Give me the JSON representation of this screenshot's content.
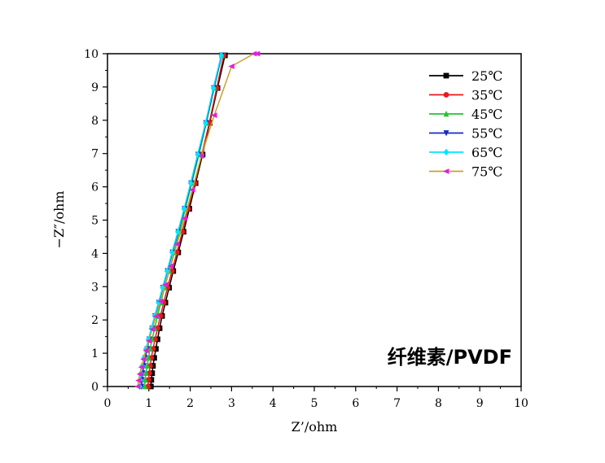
{
  "chart_data": {
    "type": "line",
    "xlabel": "Z’/ohm",
    "ylabel": "−Z″/ohm",
    "xlim": [
      0,
      10
    ],
    "ylim": [
      0,
      10
    ],
    "xticks": [
      0,
      1,
      2,
      3,
      4,
      5,
      6,
      7,
      8,
      9,
      10
    ],
    "yticks": [
      0,
      1,
      2,
      3,
      4,
      5,
      6,
      7,
      8,
      9,
      10
    ],
    "grid": false,
    "legend_position": "top-right",
    "annotation": "纤维素/PVDF",
    "series": [
      {
        "name": "25℃",
        "color": "#000000",
        "marker": "square",
        "x": [
          1.05,
          1.06,
          1.08,
          1.1,
          1.13,
          1.17,
          1.21,
          1.26,
          1.32,
          1.4,
          1.49,
          1.59,
          1.71,
          1.84,
          1.98,
          2.13,
          2.3,
          2.47,
          2.66,
          2.84
        ],
        "y": [
          0.0,
          0.2,
          0.4,
          0.62,
          0.86,
          1.13,
          1.42,
          1.75,
          2.12,
          2.52,
          2.97,
          3.47,
          4.03,
          4.65,
          5.34,
          6.11,
          6.97,
          7.92,
          8.97,
          9.95
        ]
      },
      {
        "name": "35℃",
        "color": "#e8191f",
        "marker": "circle",
        "x": [
          0.98,
          0.99,
          1.01,
          1.03,
          1.06,
          1.1,
          1.15,
          1.21,
          1.28,
          1.36,
          1.45,
          1.56,
          1.68,
          1.81,
          1.95,
          2.11,
          2.28,
          2.46,
          2.64,
          2.81
        ],
        "y": [
          0.0,
          0.2,
          0.4,
          0.62,
          0.86,
          1.13,
          1.42,
          1.75,
          2.12,
          2.52,
          2.97,
          3.47,
          4.03,
          4.65,
          5.34,
          6.11,
          6.97,
          7.92,
          8.97,
          9.95
        ]
      },
      {
        "name": "45℃",
        "color": "#22c331",
        "marker": "triangle-up",
        "x": [
          0.9,
          0.91,
          0.93,
          0.96,
          0.99,
          1.03,
          1.08,
          1.14,
          1.21,
          1.29,
          1.38,
          1.49,
          1.61,
          1.74,
          1.88,
          2.04,
          2.21,
          2.39,
          2.58,
          2.76
        ],
        "y": [
          0.0,
          0.2,
          0.4,
          0.62,
          0.86,
          1.13,
          1.42,
          1.75,
          2.12,
          2.52,
          2.97,
          3.47,
          4.03,
          4.65,
          5.34,
          6.11,
          6.97,
          7.92,
          8.97,
          9.95
        ]
      },
      {
        "name": "55℃",
        "color": "#1529c7",
        "marker": "triangle-down",
        "x": [
          0.82,
          0.83,
          0.85,
          0.88,
          0.91,
          0.96,
          1.01,
          1.08,
          1.15,
          1.24,
          1.34,
          1.45,
          1.57,
          1.71,
          1.86,
          2.02,
          2.19,
          2.38,
          2.57,
          2.76
        ],
        "y": [
          0.0,
          0.2,
          0.4,
          0.62,
          0.86,
          1.13,
          1.42,
          1.75,
          2.12,
          2.52,
          2.97,
          3.47,
          4.03,
          4.65,
          5.34,
          6.11,
          6.97,
          7.92,
          8.97,
          9.95
        ]
      },
      {
        "name": "65℃",
        "color": "#00e5ff",
        "marker": "diamond",
        "x": [
          0.78,
          0.79,
          0.81,
          0.84,
          0.88,
          0.93,
          0.99,
          1.06,
          1.14,
          1.23,
          1.33,
          1.44,
          1.56,
          1.7,
          1.85,
          2.01,
          2.18,
          2.37,
          2.56,
          2.75
        ],
        "y": [
          0.0,
          0.2,
          0.4,
          0.62,
          0.86,
          1.13,
          1.42,
          1.75,
          2.12,
          2.52,
          2.97,
          3.47,
          4.03,
          4.65,
          5.34,
          6.11,
          6.97,
          7.92,
          8.97,
          9.95
        ]
      },
      {
        "name": "75℃",
        "color": "#c8a031",
        "marker": "triangle-left",
        "markerColor": "#e020d8",
        "x": [
          0.73,
          0.75,
          0.78,
          0.82,
          0.87,
          0.93,
          1.0,
          1.08,
          1.17,
          1.28,
          1.4,
          1.53,
          1.68,
          1.86,
          2.05,
          2.27,
          2.58,
          3.0,
          3.54,
          3.62
        ],
        "y": [
          0.0,
          0.18,
          0.37,
          0.58,
          0.82,
          1.08,
          1.37,
          1.72,
          2.11,
          2.56,
          3.06,
          3.62,
          4.28,
          5.05,
          5.91,
          6.93,
          8.15,
          9.62,
          10.0,
          10.0
        ]
      }
    ]
  }
}
